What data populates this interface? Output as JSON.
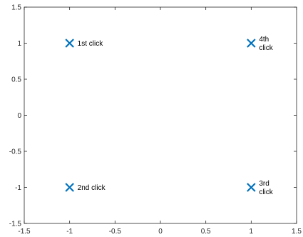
{
  "chart_data": {
    "type": "scatter",
    "title": "",
    "xlabel": "",
    "ylabel": "",
    "xlim": [
      -1.5,
      1.5
    ],
    "ylim": [
      -1.5,
      1.5
    ],
    "x_ticks": [
      -1.5,
      -1,
      -0.5,
      0,
      0.5,
      1,
      1.5
    ],
    "x_tick_labels": [
      "-1.5",
      "-1",
      "-0.5",
      "0",
      "0.5",
      "1",
      "1.5"
    ],
    "y_ticks": [
      1.5,
      1,
      0.5,
      0,
      -0.5,
      -1,
      -1.5
    ],
    "y_tick_labels": [
      "1.5",
      "1",
      "0.5",
      "0",
      "-0.5",
      "-1",
      "-1.5"
    ],
    "grid": false,
    "marker": "x",
    "marker_color": "#0072BD",
    "points": [
      {
        "x": -1,
        "y": 1,
        "label_lines": [
          "1st click"
        ]
      },
      {
        "x": 1,
        "y": 1,
        "label_lines": [
          "4th",
          "click"
        ]
      },
      {
        "x": -1,
        "y": -1,
        "label_lines": [
          "2nd click"
        ]
      },
      {
        "x": 1,
        "y": -1,
        "label_lines": [
          "3rd",
          "click"
        ]
      }
    ]
  }
}
